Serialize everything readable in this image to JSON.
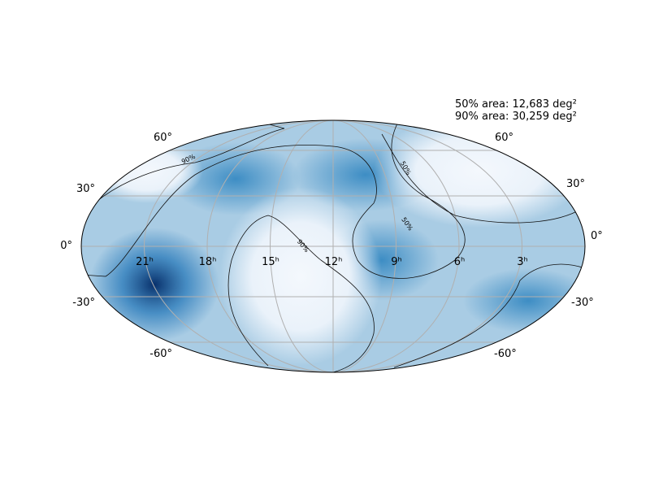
{
  "annotations": {
    "area_50": "50% area: 12,683 deg²",
    "area_90": "90% area: 30,259 deg²"
  },
  "lat_labels_left": [
    "60°",
    "30°",
    "0°",
    "-30°",
    "-60°"
  ],
  "lat_labels_right": [
    "60°",
    "30°",
    "0°",
    "-30°",
    "-60°"
  ],
  "ra_labels": [
    "21ʰ",
    "18ʰ",
    "15ʰ",
    "12ʰ",
    "9ʰ",
    "6ʰ",
    "3ʰ"
  ],
  "contour_labels": [
    "90%",
    "90%",
    "50%",
    "50%"
  ]
}
